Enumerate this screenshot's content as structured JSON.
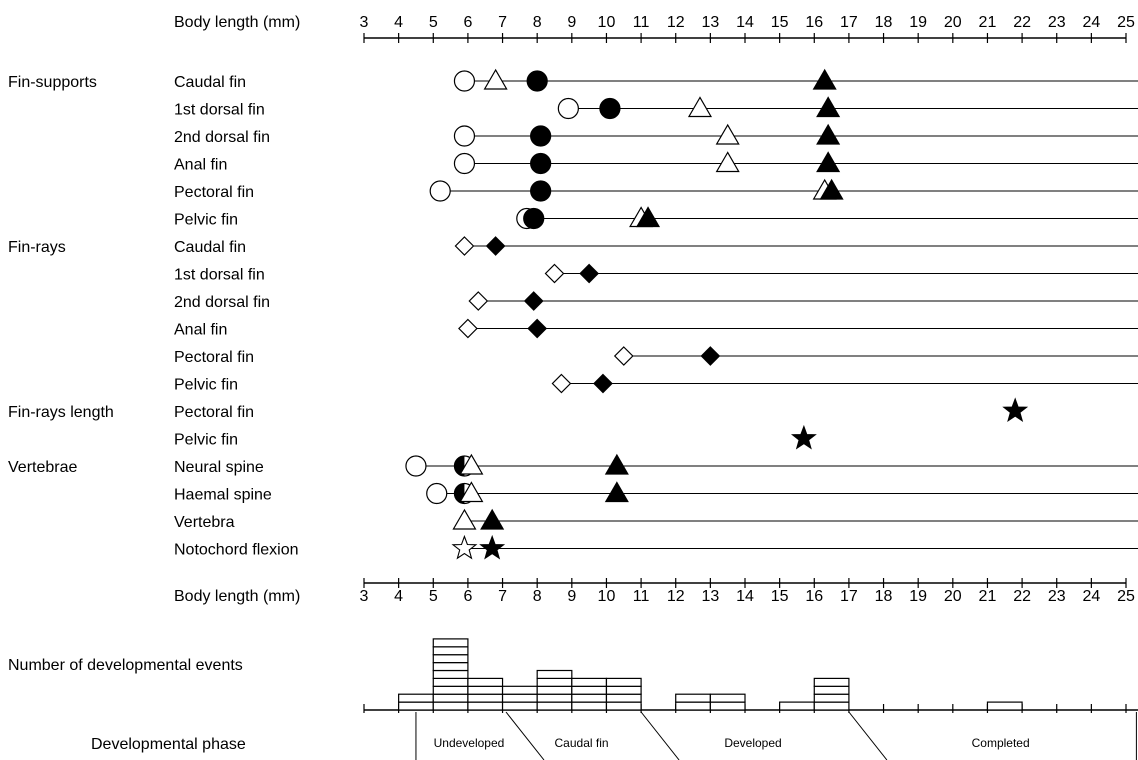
{
  "chart_data": {
    "type": "scatter",
    "axis_title": "Body length (mm)",
    "xlim": [
      3,
      25
    ],
    "ticks": [
      3,
      4,
      5,
      6,
      7,
      8,
      9,
      10,
      11,
      12,
      13,
      14,
      15,
      16,
      17,
      18,
      19,
      20,
      21,
      22,
      23,
      24,
      25
    ],
    "line_end_x": 25.5,
    "rows": [
      {
        "group": "Fin-supports",
        "label": "Caudal fin",
        "line_start": 6.0,
        "markers": [
          {
            "x": 5.9,
            "shape": "circle",
            "fill": "open"
          },
          {
            "x": 6.8,
            "shape": "triangle",
            "fill": "open"
          },
          {
            "x": 8.0,
            "shape": "circle",
            "fill": "filled"
          },
          {
            "x": 16.3,
            "shape": "triangle",
            "fill": "filled"
          }
        ]
      },
      {
        "group": "",
        "label": "1st dorsal fin",
        "line_start": 9.0,
        "markers": [
          {
            "x": 8.9,
            "shape": "circle",
            "fill": "open"
          },
          {
            "x": 10.1,
            "shape": "circle",
            "fill": "filled"
          },
          {
            "x": 12.7,
            "shape": "triangle",
            "fill": "open"
          },
          {
            "x": 16.4,
            "shape": "triangle",
            "fill": "filled"
          }
        ]
      },
      {
        "group": "",
        "label": "2nd dorsal fin",
        "line_start": 6.0,
        "markers": [
          {
            "x": 5.9,
            "shape": "circle",
            "fill": "open"
          },
          {
            "x": 8.1,
            "shape": "circle",
            "fill": "filled"
          },
          {
            "x": 13.5,
            "shape": "triangle",
            "fill": "open"
          },
          {
            "x": 16.4,
            "shape": "triangle",
            "fill": "filled"
          }
        ]
      },
      {
        "group": "",
        "label": "Anal fin",
        "line_start": 6.0,
        "markers": [
          {
            "x": 5.9,
            "shape": "circle",
            "fill": "open"
          },
          {
            "x": 8.1,
            "shape": "circle",
            "fill": "filled"
          },
          {
            "x": 13.5,
            "shape": "triangle",
            "fill": "open"
          },
          {
            "x": 16.4,
            "shape": "triangle",
            "fill": "filled"
          }
        ]
      },
      {
        "group": "",
        "label": "Pectoral fin",
        "line_start": 5.3,
        "markers": [
          {
            "x": 5.2,
            "shape": "circle",
            "fill": "open"
          },
          {
            "x": 8.1,
            "shape": "circle",
            "fill": "filled"
          },
          {
            "x": 16.3,
            "shape": "triangle",
            "fill": "open"
          },
          {
            "x": 16.5,
            "shape": "triangle",
            "fill": "filled"
          }
        ]
      },
      {
        "group": "",
        "label": "Pelvic fin",
        "line_start": 7.8,
        "markers": [
          {
            "x": 7.7,
            "shape": "circle",
            "fill": "open"
          },
          {
            "x": 7.9,
            "shape": "circle",
            "fill": "filled"
          },
          {
            "x": 11.0,
            "shape": "triangle",
            "fill": "open"
          },
          {
            "x": 11.2,
            "shape": "triangle",
            "fill": "filled"
          }
        ]
      },
      {
        "group": "Fin-rays",
        "label": "Caudal fin",
        "line_start": 6.0,
        "markers": [
          {
            "x": 5.9,
            "shape": "diamond",
            "fill": "open"
          },
          {
            "x": 6.8,
            "shape": "diamond",
            "fill": "filled"
          }
        ]
      },
      {
        "group": "",
        "label": "1st dorsal fin",
        "line_start": 8.5,
        "markers": [
          {
            "x": 8.5,
            "shape": "diamond",
            "fill": "open"
          },
          {
            "x": 9.5,
            "shape": "diamond",
            "fill": "filled"
          }
        ]
      },
      {
        "group": "",
        "label": "2nd dorsal fin",
        "line_start": 6.3,
        "markers": [
          {
            "x": 6.3,
            "shape": "diamond",
            "fill": "open"
          },
          {
            "x": 7.9,
            "shape": "diamond",
            "fill": "filled"
          }
        ]
      },
      {
        "group": "",
        "label": "Anal fin",
        "line_start": 6.1,
        "markers": [
          {
            "x": 6.0,
            "shape": "diamond",
            "fill": "open"
          },
          {
            "x": 8.0,
            "shape": "diamond",
            "fill": "filled"
          }
        ]
      },
      {
        "group": "",
        "label": "Pectoral fin",
        "line_start": 10.6,
        "markers": [
          {
            "x": 10.5,
            "shape": "diamond",
            "fill": "open"
          },
          {
            "x": 13.0,
            "shape": "diamond",
            "fill": "filled"
          }
        ]
      },
      {
        "group": "",
        "label": "Pelvic fin",
        "line_start": 8.7,
        "markers": [
          {
            "x": 8.7,
            "shape": "diamond",
            "fill": "open"
          },
          {
            "x": 9.9,
            "shape": "diamond",
            "fill": "filled"
          }
        ]
      },
      {
        "group": "Fin-rays length",
        "label": "Pectoral fin",
        "line_start": null,
        "markers": [
          {
            "x": 21.8,
            "shape": "star",
            "fill": "filled"
          }
        ]
      },
      {
        "group": "",
        "label": "Pelvic fin",
        "line_start": null,
        "markers": [
          {
            "x": 15.7,
            "shape": "star",
            "fill": "filled"
          }
        ]
      },
      {
        "group": "Vertebrae",
        "label": "Neural spine",
        "line_start": 4.6,
        "markers": [
          {
            "x": 4.5,
            "shape": "circle",
            "fill": "open"
          },
          {
            "x": 5.9,
            "shape": "circle",
            "fill": "half"
          },
          {
            "x": 6.1,
            "shape": "triangle",
            "fill": "open"
          },
          {
            "x": 10.3,
            "shape": "triangle",
            "fill": "filled"
          }
        ]
      },
      {
        "group": "",
        "label": "Haemal spine",
        "line_start": 5.2,
        "markers": [
          {
            "x": 5.1,
            "shape": "circle",
            "fill": "open"
          },
          {
            "x": 5.9,
            "shape": "circle",
            "fill": "half"
          },
          {
            "x": 6.1,
            "shape": "triangle",
            "fill": "open"
          },
          {
            "x": 10.3,
            "shape": "triangle",
            "fill": "filled"
          }
        ]
      },
      {
        "group": "",
        "label": "Vertebra",
        "line_start": 5.9,
        "markers": [
          {
            "x": 5.9,
            "shape": "triangle",
            "fill": "open"
          },
          {
            "x": 6.7,
            "shape": "triangle",
            "fill": "filled"
          }
        ]
      },
      {
        "group": "",
        "label": "Notochord flexion",
        "line_start": 6.0,
        "markers": [
          {
            "x": 5.9,
            "shape": "star",
            "fill": "open"
          },
          {
            "x": 6.7,
            "shape": "star",
            "fill": "filled"
          }
        ]
      }
    ],
    "events": {
      "label": "Number of developmental events",
      "bins": [
        {
          "from": 4,
          "to": 5,
          "count": 2
        },
        {
          "from": 5,
          "to": 6,
          "count": 9
        },
        {
          "from": 6,
          "to": 7,
          "count": 4
        },
        {
          "from": 7,
          "to": 8,
          "count": 3
        },
        {
          "from": 8,
          "to": 9,
          "count": 5
        },
        {
          "from": 9,
          "to": 10,
          "count": 4
        },
        {
          "from": 10,
          "to": 11,
          "count": 4
        },
        {
          "from": 12,
          "to": 13,
          "count": 2
        },
        {
          "from": 13,
          "to": 14,
          "count": 2
        },
        {
          "from": 15,
          "to": 16,
          "count": 1
        },
        {
          "from": 16,
          "to": 17,
          "count": 4
        },
        {
          "from": 21,
          "to": 22,
          "count": 1
        }
      ]
    },
    "phases": {
      "label": "Developmental phase",
      "items": [
        {
          "name": "Undeveloped",
          "from": 4.5,
          "to": 7.1
        },
        {
          "name": "Caudal fin",
          "from": 7.1,
          "to": 11.0
        },
        {
          "name": "Developed",
          "from": 11.0,
          "to": 17.0
        },
        {
          "name": "Completed",
          "from": 17.0,
          "to": 25.3
        }
      ]
    }
  }
}
